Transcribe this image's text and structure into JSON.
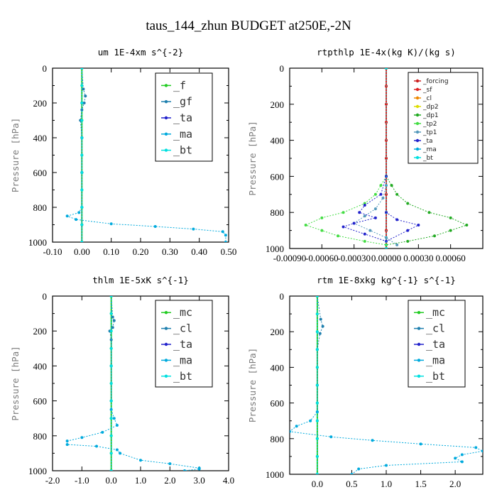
{
  "figure_title": "taus_144_zhun  BUDGET at250E,-2N",
  "chart_data": [
    {
      "type": "line",
      "title": "um  1E-4xm s^{-2}",
      "ylabel": "Pressure [hPa]",
      "xlim": [
        -0.1,
        0.5
      ],
      "ylim": [
        1000,
        0
      ],
      "xticks": [
        "-0.10",
        "0.00",
        "0.10",
        "0.20",
        "0.30",
        "0.40",
        "0.50"
      ],
      "xtick_values": [
        -0.1,
        0.0,
        0.1,
        0.2,
        0.3,
        0.4,
        0.5
      ],
      "yticks": [
        "0",
        "200",
        "400",
        "600",
        "800",
        "1000"
      ],
      "ytick_values": [
        0,
        200,
        400,
        600,
        800,
        1000
      ],
      "legend_position": "top-right",
      "legend_size": "large",
      "series": [
        {
          "name": "_f",
          "color": "#22cc22",
          "x": [
            0,
            0,
            0,
            0,
            0,
            0,
            0,
            0,
            0,
            0,
            0
          ],
          "y": [
            0,
            100,
            200,
            300,
            400,
            500,
            600,
            700,
            800,
            900,
            1000
          ]
        },
        {
          "name": "_gf",
          "color": "#1e7fae",
          "x": [
            0,
            0.005,
            0.012,
            0.008,
            0,
            -0.005,
            0,
            0,
            0,
            0,
            0
          ],
          "y": [
            0,
            120,
            160,
            200,
            240,
            300,
            400,
            600,
            800,
            900,
            1000
          ]
        },
        {
          "name": "_ta",
          "color": "#2222cc",
          "x": [
            0,
            0,
            0,
            0,
            0
          ],
          "y": [
            0,
            200,
            400,
            600,
            1000
          ]
        },
        {
          "name": "_ma",
          "color": "#00aadd",
          "x": [
            0,
            -0.01,
            -0.05,
            -0.02,
            0.1,
            0.25,
            0.38,
            0.48,
            0.49,
            0.49
          ],
          "y": [
            800,
            830,
            850,
            870,
            895,
            910,
            925,
            940,
            960,
            1000
          ]
        },
        {
          "name": "_bt",
          "color": "#00e0e0",
          "x": [
            0,
            0,
            0,
            0,
            0,
            0,
            0,
            0,
            0,
            0,
            0
          ],
          "y": [
            0,
            100,
            200,
            300,
            400,
            500,
            600,
            700,
            800,
            900,
            1000
          ]
        }
      ]
    },
    {
      "type": "line",
      "title": "rtpthlp  1E-4x(kg K)/(kg s)",
      "ylabel": "Pressure [hPa]",
      "xlim": [
        -0.0009,
        0.0009
      ],
      "ylim": [
        1000,
        0
      ],
      "xticks": [
        "-0.00090",
        "-0.00060",
        "-0.00030",
        "0.00000",
        "0.00030",
        "0.00060"
      ],
      "xtick_values": [
        -0.0009,
        -0.0006,
        -0.0003,
        0.0,
        0.0003,
        0.0006
      ],
      "yticks": [
        "0",
        "200",
        "400",
        "600",
        "800",
        "1000"
      ],
      "ytick_values": [
        0,
        200,
        400,
        600,
        800,
        1000
      ],
      "legend_position": "top-right",
      "legend_size": "small",
      "series": [
        {
          "name": "_forcing",
          "color": "#cc2222",
          "x": [
            0,
            0,
            0,
            0,
            0,
            0,
            0,
            0,
            0,
            0,
            0
          ],
          "y": [
            0,
            100,
            200,
            300,
            400,
            500,
            600,
            700,
            800,
            900,
            1000
          ]
        },
        {
          "name": "_sf",
          "color": "#dd2222",
          "x": [
            0,
            0,
            0,
            0,
            0,
            0,
            0,
            0,
            0,
            0,
            0
          ],
          "y": [
            0,
            100,
            200,
            300,
            400,
            500,
            600,
            700,
            800,
            900,
            1000
          ]
        },
        {
          "name": "_cl",
          "color": "#ee8800",
          "x": [
            0,
            0
          ],
          "y": [
            0,
            1000
          ]
        },
        {
          "name": "_dp2",
          "color": "#dddd00",
          "x": [
            0,
            0
          ],
          "y": [
            0,
            1000
          ]
        },
        {
          "name": "_dp1",
          "color": "#22aa22",
          "x": [
            0,
            5e-05,
            0.0001,
            0.0002,
            0.0004,
            0.0006,
            0.00075,
            0.0006,
            0.00045,
            0.0002,
            0
          ],
          "y": [
            600,
            650,
            700,
            750,
            800,
            830,
            870,
            900,
            930,
            960,
            980
          ]
        },
        {
          "name": "_tp2",
          "color": "#44dd44",
          "x": [
            0,
            -5e-05,
            -0.0001,
            -0.0002,
            -0.0004,
            -0.0006,
            -0.00075,
            -0.0006,
            -0.00045,
            -0.0002,
            0
          ],
          "y": [
            600,
            650,
            700,
            750,
            800,
            830,
            870,
            900,
            930,
            960,
            980
          ]
        },
        {
          "name": "_tp1",
          "color": "#5599bb",
          "x": [
            0,
            -3e-05,
            -0.0001,
            -0.0002,
            -0.0003,
            -0.00015,
            0,
            0.0001
          ],
          "y": [
            650,
            720,
            780,
            820,
            860,
            900,
            940,
            980
          ]
        },
        {
          "name": "_ta",
          "color": "#2222cc",
          "x": [
            0,
            -5e-05,
            -0.0002,
            -0.00025,
            -0.0001,
            -0.0003,
            -0.0004,
            -0.0002,
            0,
            0.0002,
            0.0003,
            0.0001,
            0
          ],
          "y": [
            600,
            700,
            760,
            800,
            830,
            860,
            880,
            920,
            960,
            900,
            870,
            840,
            800
          ]
        },
        {
          "name": "_ma",
          "color": "#00aadd",
          "x": [
            0,
            0
          ],
          "y": [
            0,
            1000
          ]
        },
        {
          "name": "_bt",
          "color": "#00e0e0",
          "x": [
            0,
            0
          ],
          "y": [
            0,
            1000
          ]
        }
      ]
    },
    {
      "type": "line",
      "title": "thlm  1E-5xK s^{-1}",
      "ylabel": "Pressure [hPa]",
      "xlim": [
        -2.0,
        4.0
      ],
      "ylim": [
        1000,
        0
      ],
      "xticks": [
        "-2.0",
        "-1.0",
        "0.0",
        "1.0",
        "2.0",
        "3.0",
        "4.0"
      ],
      "xtick_values": [
        -2.0,
        -1.0,
        0.0,
        1.0,
        2.0,
        3.0,
        4.0
      ],
      "yticks": [
        "0",
        "200",
        "400",
        "600",
        "800",
        "1000"
      ],
      "ytick_values": [
        0,
        200,
        400,
        600,
        800,
        1000
      ],
      "legend_position": "top-right",
      "legend_size": "large",
      "series": [
        {
          "name": "_mc",
          "color": "#22cc22",
          "x": [
            0,
            0,
            0,
            0,
            0,
            0,
            0,
            0,
            0,
            0,
            0
          ],
          "y": [
            0,
            100,
            200,
            300,
            400,
            500,
            600,
            700,
            800,
            900,
            1000
          ]
        },
        {
          "name": "_cl",
          "color": "#1e7fae",
          "x": [
            0,
            0.05,
            0.1,
            0.05,
            -0.05,
            0,
            0,
            0
          ],
          "y": [
            0,
            120,
            140,
            180,
            200,
            250,
            400,
            600
          ]
        },
        {
          "name": "_ta",
          "color": "#2222cc",
          "x": [
            0,
            0
          ],
          "y": [
            0,
            1000
          ]
        },
        {
          "name": "_ma",
          "color": "#00aadd",
          "x": [
            0,
            0.1,
            0.2,
            -0.3,
            -1.0,
            -1.5,
            -1.5,
            -0.5,
            0.2,
            0.3,
            1.0,
            2.0,
            3.0,
            3.0,
            2.5
          ],
          "y": [
            650,
            700,
            740,
            780,
            810,
            830,
            850,
            860,
            880,
            900,
            940,
            960,
            985,
            990,
            1000
          ]
        },
        {
          "name": "_bt",
          "color": "#00e0e0",
          "x": [
            0,
            0,
            0,
            0,
            0,
            0,
            0,
            0,
            0,
            0,
            0
          ],
          "y": [
            0,
            100,
            200,
            300,
            400,
            500,
            600,
            700,
            800,
            900,
            1000
          ]
        }
      ]
    },
    {
      "type": "line",
      "title": "rtm  1E-8xkg kg^{-1} s^{-1}",
      "ylabel": "Pressure [hPa]",
      "xlim": [
        -0.4,
        2.4
      ],
      "ylim": [
        1000,
        0
      ],
      "xticks": [
        "0.0",
        "0.5",
        "1.0",
        "1.5",
        "2.0"
      ],
      "xtick_values": [
        0.0,
        0.5,
        1.0,
        1.5,
        2.0
      ],
      "yticks": [
        "0",
        "200",
        "400",
        "600",
        "800",
        "1000"
      ],
      "ytick_values": [
        0,
        200,
        400,
        600,
        800,
        1000
      ],
      "legend_position": "top-right",
      "legend_size": "large",
      "series": [
        {
          "name": "_mc",
          "color": "#22cc22",
          "x": [
            0,
            0,
            0,
            0,
            0,
            0,
            0,
            0,
            0,
            0,
            0
          ],
          "y": [
            0,
            100,
            200,
            300,
            400,
            500,
            600,
            700,
            800,
            900,
            1000
          ]
        },
        {
          "name": "_cl",
          "color": "#1e7fae",
          "x": [
            0,
            0.05,
            0.08,
            0.04,
            0,
            0,
            0
          ],
          "y": [
            0,
            130,
            170,
            210,
            300,
            500,
            650
          ]
        },
        {
          "name": "_ta",
          "color": "#2222cc",
          "x": [
            0,
            0
          ],
          "y": [
            0,
            1000
          ]
        },
        {
          "name": "_ma",
          "color": "#00aadd",
          "x": [
            0,
            -0.1,
            -0.3,
            -0.4,
            0.2,
            0.8,
            1.5,
            2.3,
            2.4,
            2.1,
            2.0,
            2.1,
            1.0,
            0.6,
            0.5
          ],
          "y": [
            650,
            700,
            730,
            760,
            790,
            810,
            830,
            850,
            870,
            890,
            910,
            930,
            950,
            970,
            1000
          ]
        },
        {
          "name": "_bt",
          "color": "#00e0e0",
          "x": [
            0,
            0,
            0,
            0,
            0,
            0,
            0,
            0,
            0,
            0,
            0
          ],
          "y": [
            0,
            100,
            200,
            300,
            400,
            500,
            600,
            700,
            800,
            900,
            1000
          ]
        }
      ]
    }
  ]
}
